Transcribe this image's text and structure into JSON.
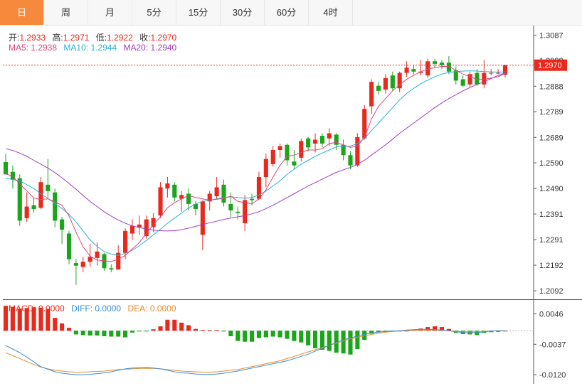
{
  "tabs": [
    "日",
    "周",
    "月",
    "5分",
    "15分",
    "30分",
    "60分",
    "4时"
  ],
  "active_tab": 0,
  "ohlc_info": {
    "open_label": "开:",
    "open": "1.2933",
    "high_label": "高:",
    "high": "1.2971",
    "low_label": "低:",
    "low": "1.2922",
    "close_label": "收:",
    "close": "1.2970"
  },
  "ma_info": {
    "ma5_label": "MA5:",
    "ma5": "1.2938",
    "ma10_label": "MA10:",
    "ma10": "1.2944",
    "ma20_label": "MA20:",
    "ma20": "1.2940"
  },
  "macd_info": {
    "macd_label": "MACD:",
    "macd": "0.0000",
    "diff_label": "DIFF:",
    "diff": "0.0000",
    "dea_label": "DEA:",
    "dea": "0.0000"
  },
  "current_price_tag": "1.2970",
  "colors": {
    "up": "#e8291c",
    "down": "#1aa51a",
    "ma5": "#e0457b",
    "ma10": "#2ab1d6",
    "ma20": "#a23cc4",
    "diff": "#3a8fd8",
    "dea": "#ea8b2a",
    "accent": "#f6893b"
  },
  "chart_data": [
    {
      "type": "candlestick",
      "y_ticks": [
        "1.3087",
        "1.2988",
        "1.2888",
        "1.2789",
        "1.2689",
        "1.2590",
        "1.2490",
        "1.2391",
        "1.2291",
        "1.2192",
        "1.2092"
      ],
      "ylim": [
        1.2062,
        1.3124
      ],
      "current_price": 1.297,
      "candles": [
        [
          1.2593,
          1.2625,
          1.2548,
          1.2545
        ],
        [
          1.2555,
          1.258,
          1.249,
          1.2525
        ],
        [
          1.253,
          1.2545,
          1.2345,
          1.2365
        ],
        [
          1.2375,
          1.2475,
          1.236,
          1.242
        ],
        [
          1.2425,
          1.2455,
          1.2395,
          1.241
        ],
        [
          1.2415,
          1.2535,
          1.241,
          1.2515
        ],
        [
          1.2505,
          1.2605,
          1.2455,
          1.248
        ],
        [
          1.2475,
          1.249,
          1.234,
          1.2365
        ],
        [
          1.237,
          1.238,
          1.2275,
          1.233
        ],
        [
          1.2315,
          1.2325,
          1.2195,
          1.2215
        ],
        [
          1.22,
          1.2215,
          1.2115,
          1.219
        ],
        [
          1.2185,
          1.2225,
          1.2165,
          1.2205
        ],
        [
          1.2205,
          1.2275,
          1.2185,
          1.2225
        ],
        [
          1.222,
          1.228,
          1.219,
          1.2245
        ],
        [
          1.2235,
          1.224,
          1.217,
          1.218
        ],
        [
          1.218,
          1.2195,
          1.2165,
          1.2175
        ],
        [
          1.2175,
          1.227,
          1.2175,
          1.224
        ],
        [
          1.224,
          1.2335,
          1.2215,
          1.2325
        ],
        [
          1.2315,
          1.237,
          1.229,
          1.2345
        ],
        [
          1.234,
          1.2385,
          1.231,
          1.235
        ],
        [
          1.2305,
          1.2385,
          1.2295,
          1.237
        ],
        [
          1.234,
          1.2395,
          1.232,
          1.2375
        ],
        [
          1.2385,
          1.2515,
          1.2375,
          1.2495
        ],
        [
          1.249,
          1.2535,
          1.2455,
          1.251
        ],
        [
          1.2505,
          1.2515,
          1.244,
          1.2455
        ],
        [
          1.245,
          1.248,
          1.24,
          1.2465
        ],
        [
          1.247,
          1.249,
          1.2405,
          1.243
        ],
        [
          1.243,
          1.244,
          1.2385,
          1.241
        ],
        [
          1.231,
          1.2445,
          1.225,
          1.244
        ],
        [
          1.244,
          1.248,
          1.2405,
          1.247
        ],
        [
          1.246,
          1.2535,
          1.245,
          1.2495
        ],
        [
          1.2505,
          1.2525,
          1.242,
          1.2435
        ],
        [
          1.243,
          1.2475,
          1.238,
          1.2405
        ],
        [
          1.24,
          1.242,
          1.237,
          1.2395
        ],
        [
          1.2355,
          1.2465,
          1.2325,
          1.2445
        ],
        [
          1.245,
          1.247,
          1.2425,
          1.2445
        ],
        [
          1.245,
          1.2555,
          1.2445,
          1.2535
        ],
        [
          1.2535,
          1.2625,
          1.2495,
          1.2605
        ],
        [
          1.2585,
          1.2655,
          1.2575,
          1.264
        ],
        [
          1.264,
          1.2665,
          1.261,
          1.2655
        ],
        [
          1.266,
          1.2665,
          1.258,
          1.26
        ],
        [
          1.2595,
          1.264,
          1.2565,
          1.258
        ],
        [
          1.261,
          1.2685,
          1.2595,
          1.2675
        ],
        [
          1.2685,
          1.269,
          1.2635,
          1.265
        ],
        [
          1.2665,
          1.2705,
          1.263,
          1.268
        ],
        [
          1.2695,
          1.2705,
          1.265,
          1.2665
        ],
        [
          1.2685,
          1.2725,
          1.2655,
          1.2705
        ],
        [
          1.27,
          1.2705,
          1.264,
          1.266
        ],
        [
          1.266,
          1.268,
          1.26,
          1.262
        ],
        [
          1.262,
          1.2635,
          1.2565,
          1.258
        ],
        [
          1.258,
          1.2705,
          1.2575,
          1.269
        ],
        [
          1.2685,
          1.2815,
          1.268,
          1.28
        ],
        [
          1.281,
          1.2915,
          1.278,
          1.2905
        ],
        [
          1.289,
          1.2905,
          1.2855,
          1.287
        ],
        [
          1.2875,
          1.2935,
          1.286,
          1.292
        ],
        [
          1.293,
          1.2945,
          1.287,
          1.288
        ],
        [
          1.288,
          1.2945,
          1.2865,
          1.294
        ],
        [
          1.294,
          1.2985,
          1.2925,
          1.296
        ],
        [
          1.2955,
          1.297,
          1.2935,
          1.2945
        ],
        [
          1.294,
          1.299,
          1.293,
          1.2945
        ],
        [
          1.293,
          1.2995,
          1.292,
          1.2985
        ],
        [
          1.2985,
          1.2995,
          1.296,
          1.2975
        ],
        [
          1.298,
          1.299,
          1.2955,
          1.297
        ],
        [
          1.298,
          1.3005,
          1.2935,
          1.2945
        ],
        [
          1.295,
          1.2965,
          1.2895,
          1.291
        ],
        [
          1.2915,
          1.293,
          1.2885,
          1.289
        ],
        [
          1.2895,
          1.2945,
          1.2885,
          1.2935
        ],
        [
          1.294,
          1.2955,
          1.289,
          1.2895
        ],
        [
          1.2895,
          1.299,
          1.288,
          1.294
        ],
        [
          1.294,
          1.2955,
          1.293,
          1.294
        ],
        [
          1.294,
          1.2955,
          1.2935,
          1.294
        ],
        [
          1.2933,
          1.2971,
          1.2922,
          1.297
        ]
      ],
      "ma5": [
        1.2547,
        1.2538,
        1.2508,
        1.2481,
        1.2453,
        1.2447,
        1.245,
        1.2438,
        1.2425,
        1.2383,
        1.232,
        1.2263,
        1.2227,
        1.2212,
        1.2209,
        1.2206,
        1.2215,
        1.223,
        1.2255,
        1.228,
        1.2315,
        1.235,
        1.238,
        1.2415,
        1.2435,
        1.245,
        1.2463,
        1.2455,
        1.245,
        1.2445,
        1.2448,
        1.2452,
        1.246,
        1.244,
        1.2435,
        1.243,
        1.245,
        1.2485,
        1.2535,
        1.258,
        1.2615,
        1.262,
        1.263,
        1.264,
        1.264,
        1.2645,
        1.2665,
        1.267,
        1.266,
        1.265,
        1.2655,
        1.269,
        1.276,
        1.281,
        1.284,
        1.287,
        1.2895,
        1.2915,
        1.293,
        1.2945,
        1.2955,
        1.296,
        1.2965,
        1.2965,
        1.295,
        1.2935,
        1.2925,
        1.2915,
        1.2915,
        1.292,
        1.2925,
        1.2938
      ],
      "ma10": [
        1.253,
        1.2525,
        1.252,
        1.2505,
        1.249,
        1.247,
        1.2452,
        1.2432,
        1.2412,
        1.239,
        1.236,
        1.2325,
        1.229,
        1.2265,
        1.2245,
        1.2235,
        1.223,
        1.2238,
        1.225,
        1.2268,
        1.2288,
        1.231,
        1.2332,
        1.2355,
        1.2375,
        1.2395,
        1.2415,
        1.243,
        1.244,
        1.2445,
        1.245,
        1.2455,
        1.2458,
        1.2455,
        1.2452,
        1.2455,
        1.2465,
        1.248,
        1.25,
        1.252,
        1.2545,
        1.2565,
        1.2585,
        1.26,
        1.2615,
        1.2628,
        1.264,
        1.2652,
        1.2655,
        1.2655,
        1.2665,
        1.2685,
        1.2715,
        1.2745,
        1.2775,
        1.2805,
        1.2835,
        1.286,
        1.288,
        1.2898,
        1.2912,
        1.2925,
        1.2935,
        1.2942,
        1.2945,
        1.2947,
        1.2948,
        1.2947,
        1.2945,
        1.2944,
        1.2943,
        1.2944
      ],
      "ma20": [
        1.2645,
        1.2638,
        1.2628,
        1.2615,
        1.26,
        1.2585,
        1.257,
        1.2552,
        1.2532,
        1.251,
        1.2487,
        1.2463,
        1.244,
        1.242,
        1.24,
        1.2383,
        1.2368,
        1.2355,
        1.2345,
        1.2338,
        1.2333,
        1.2328,
        1.2326,
        1.2325,
        1.2326,
        1.233,
        1.2336,
        1.2343,
        1.235,
        1.2357,
        1.2363,
        1.237,
        1.2375,
        1.238,
        1.2385,
        1.2392,
        1.24,
        1.2412,
        1.2425,
        1.244,
        1.2455,
        1.247,
        1.2485,
        1.25,
        1.2513,
        1.2527,
        1.254,
        1.2553,
        1.2563,
        1.2572,
        1.2585,
        1.26,
        1.262,
        1.264,
        1.266,
        1.2682,
        1.2705,
        1.2725,
        1.2745,
        1.2765,
        1.2785,
        1.2805,
        1.2823,
        1.284,
        1.2855,
        1.287,
        1.2883,
        1.2895,
        1.2905,
        1.2918,
        1.293,
        1.294
      ]
    },
    {
      "type": "macd",
      "y_ticks": [
        "0.0046",
        "-0.0037",
        "-0.0120"
      ],
      "ylim": [
        -0.0145,
        0.008
      ],
      "histogram": [
        0.0068,
        0.0065,
        0.006,
        0.0062,
        0.0064,
        0.0063,
        0.006,
        0.0035,
        0.002,
        0.0008,
        -0.001,
        -0.0012,
        -0.0013,
        -0.0013,
        -0.0015,
        -0.0016,
        -0.0016,
        -0.0018,
        -0.0005,
        -0.0002,
        -0.0001,
        0.0004,
        0.0012,
        0.003,
        0.003,
        0.0022,
        0.0015,
        0.0005,
        0.0002,
        0.0002,
        0.0002,
        -0.0002,
        -0.0015,
        -0.0028,
        -0.003,
        -0.003,
        -0.002,
        -0.0018,
        -0.0016,
        -0.0018,
        -0.0022,
        -0.0028,
        -0.0032,
        -0.004,
        -0.0048,
        -0.0052,
        -0.0055,
        -0.006,
        -0.0062,
        -0.0065,
        -0.005,
        -0.0025,
        -0.0008,
        -0.0004,
        -0.0003,
        -0.0002,
        -0.0001,
        0.0,
        0.0002,
        0.0006,
        0.001,
        0.0012,
        0.001,
        0.0005,
        -0.0006,
        -0.0009,
        -0.001,
        -0.0012,
        -0.0006,
        -0.0004,
        -0.0003,
        0.0
      ],
      "diff": [
        -0.004,
        -0.005,
        -0.006,
        -0.0072,
        -0.0085,
        -0.0098,
        -0.0105,
        -0.0112,
        -0.0116,
        -0.0118,
        -0.012,
        -0.012,
        -0.0119,
        -0.0117,
        -0.0115,
        -0.0112,
        -0.0108,
        -0.0104,
        -0.0102,
        -0.0101,
        -0.01,
        -0.0102,
        -0.0104,
        -0.0108,
        -0.0112,
        -0.0115,
        -0.0116,
        -0.0118,
        -0.0119,
        -0.0119,
        -0.0118,
        -0.0116,
        -0.0113,
        -0.011,
        -0.0106,
        -0.0102,
        -0.0098,
        -0.0094,
        -0.009,
        -0.0086,
        -0.0082,
        -0.0076,
        -0.007,
        -0.0064,
        -0.0056,
        -0.0048,
        -0.004,
        -0.0032,
        -0.0025,
        -0.002,
        -0.0014,
        -0.001,
        -0.0006,
        -0.0004,
        -0.0002,
        -0.0001,
        0.0,
        0.0002,
        0.0003,
        0.0004,
        0.0004,
        0.0003,
        0.0002,
        0.0,
        -0.0003,
        -0.0005,
        -0.0006,
        -0.0005,
        -0.0003,
        -0.0001,
        0.0,
        0.0
      ],
      "dea": [
        -0.006,
        -0.0068,
        -0.0076,
        -0.0084,
        -0.0092,
        -0.0099,
        -0.0104,
        -0.0108,
        -0.011,
        -0.0112,
        -0.0113,
        -0.0113,
        -0.0112,
        -0.0111,
        -0.011,
        -0.0108,
        -0.0106,
        -0.0105,
        -0.0104,
        -0.0103,
        -0.0103,
        -0.0103,
        -0.0104,
        -0.0106,
        -0.0108,
        -0.011,
        -0.0111,
        -0.0112,
        -0.0113,
        -0.0113,
        -0.0112,
        -0.011,
        -0.0108,
        -0.0106,
        -0.0102,
        -0.0098,
        -0.0094,
        -0.009,
        -0.0086,
        -0.0082,
        -0.0076,
        -0.007,
        -0.0064,
        -0.0058,
        -0.0052,
        -0.0046,
        -0.004,
        -0.0034,
        -0.0028,
        -0.0022,
        -0.0018,
        -0.0014,
        -0.001,
        -0.0007,
        -0.0004,
        -0.0002,
        -0.0001,
        0.0,
        0.0001,
        0.0002,
        0.0002,
        0.0002,
        0.0001,
        0.0,
        -0.0002,
        -0.0003,
        -0.0003,
        -0.0003,
        -0.0002,
        -0.0001,
        0.0,
        0.0
      ]
    }
  ]
}
